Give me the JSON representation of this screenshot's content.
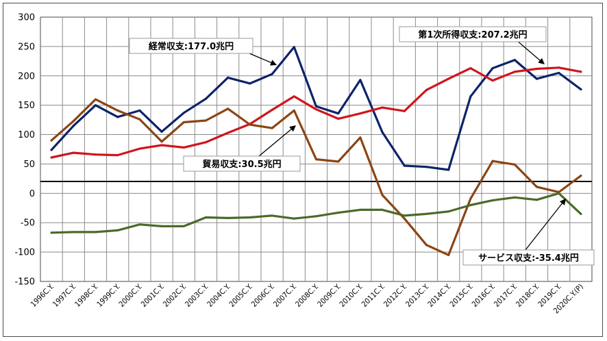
{
  "chart_data": {
    "type": "line",
    "categories": [
      "1996C.Y.",
      "1997C.Y.",
      "1998C.Y.",
      "1999C.Y.",
      "2000C.Y.",
      "2001C.Y.",
      "2002C.Y.",
      "2003C.Y.",
      "2004C.Y.",
      "2005C.Y.",
      "2006C.Y.",
      "2007C.Y.",
      "2008C.Y.",
      "2009C.Y.",
      "2010C.Y.",
      "2011C.Y.",
      "2012C.Y.",
      "2013C.Y.",
      "2014C.Y.",
      "2015C.Y.",
      "2016C.Y.",
      "2017C.Y.",
      "2018C.Y.",
      "2019C.Y.",
      "2020C.Y.(P)"
    ],
    "ylim": [
      -150,
      300
    ],
    "yticks": [
      300,
      250,
      200,
      150,
      100,
      50,
      0,
      -50,
      -100,
      -150
    ],
    "grid": true,
    "series": [
      {
        "key": "current",
        "color": "#0d2369",
        "values": [
          74,
          115,
          150,
          130,
          141,
          105,
          137,
          161,
          197,
          187,
          203,
          249,
          148,
          136,
          193,
          104,
          47,
          45,
          40,
          165,
          213,
          227,
          195,
          205,
          177
        ]
      },
      {
        "key": "primary_income",
        "color": "#d0141c",
        "values": [
          61,
          69,
          66,
          65,
          76,
          82,
          78,
          87,
          103,
          118,
          142,
          165,
          143,
          127,
          136,
          146,
          140,
          176,
          195,
          213,
          192,
          207,
          212,
          214,
          207
        ]
      },
      {
        "key": "trade",
        "color": "#8b4513",
        "values": [
          90,
          123,
          160,
          141,
          126,
          88,
          121,
          124,
          144,
          117,
          111,
          141,
          58,
          54,
          95,
          -3,
          -43,
          -88,
          -105,
          -9,
          55,
          49,
          11,
          2,
          30
        ]
      },
      {
        "key": "services",
        "color": "#4a6a2a",
        "values": [
          -67,
          -66,
          -66,
          -63,
          -53,
          -56,
          -56,
          -41,
          -42,
          -41,
          -38,
          -43,
          -39,
          -33,
          -28,
          -28,
          -38,
          -35,
          -31,
          -20,
          -12,
          -7,
          -11,
          0,
          -35
        ]
      }
    ],
    "annotations": [
      {
        "key": "current",
        "text": "経常収支:177.0兆円"
      },
      {
        "key": "primary_income",
        "text": "第1次所得収支:207.2兆円"
      },
      {
        "key": "trade",
        "text": "貿易収支:30.5兆円"
      },
      {
        "key": "services",
        "text": "サービス収支:-35.4兆円"
      }
    ]
  }
}
